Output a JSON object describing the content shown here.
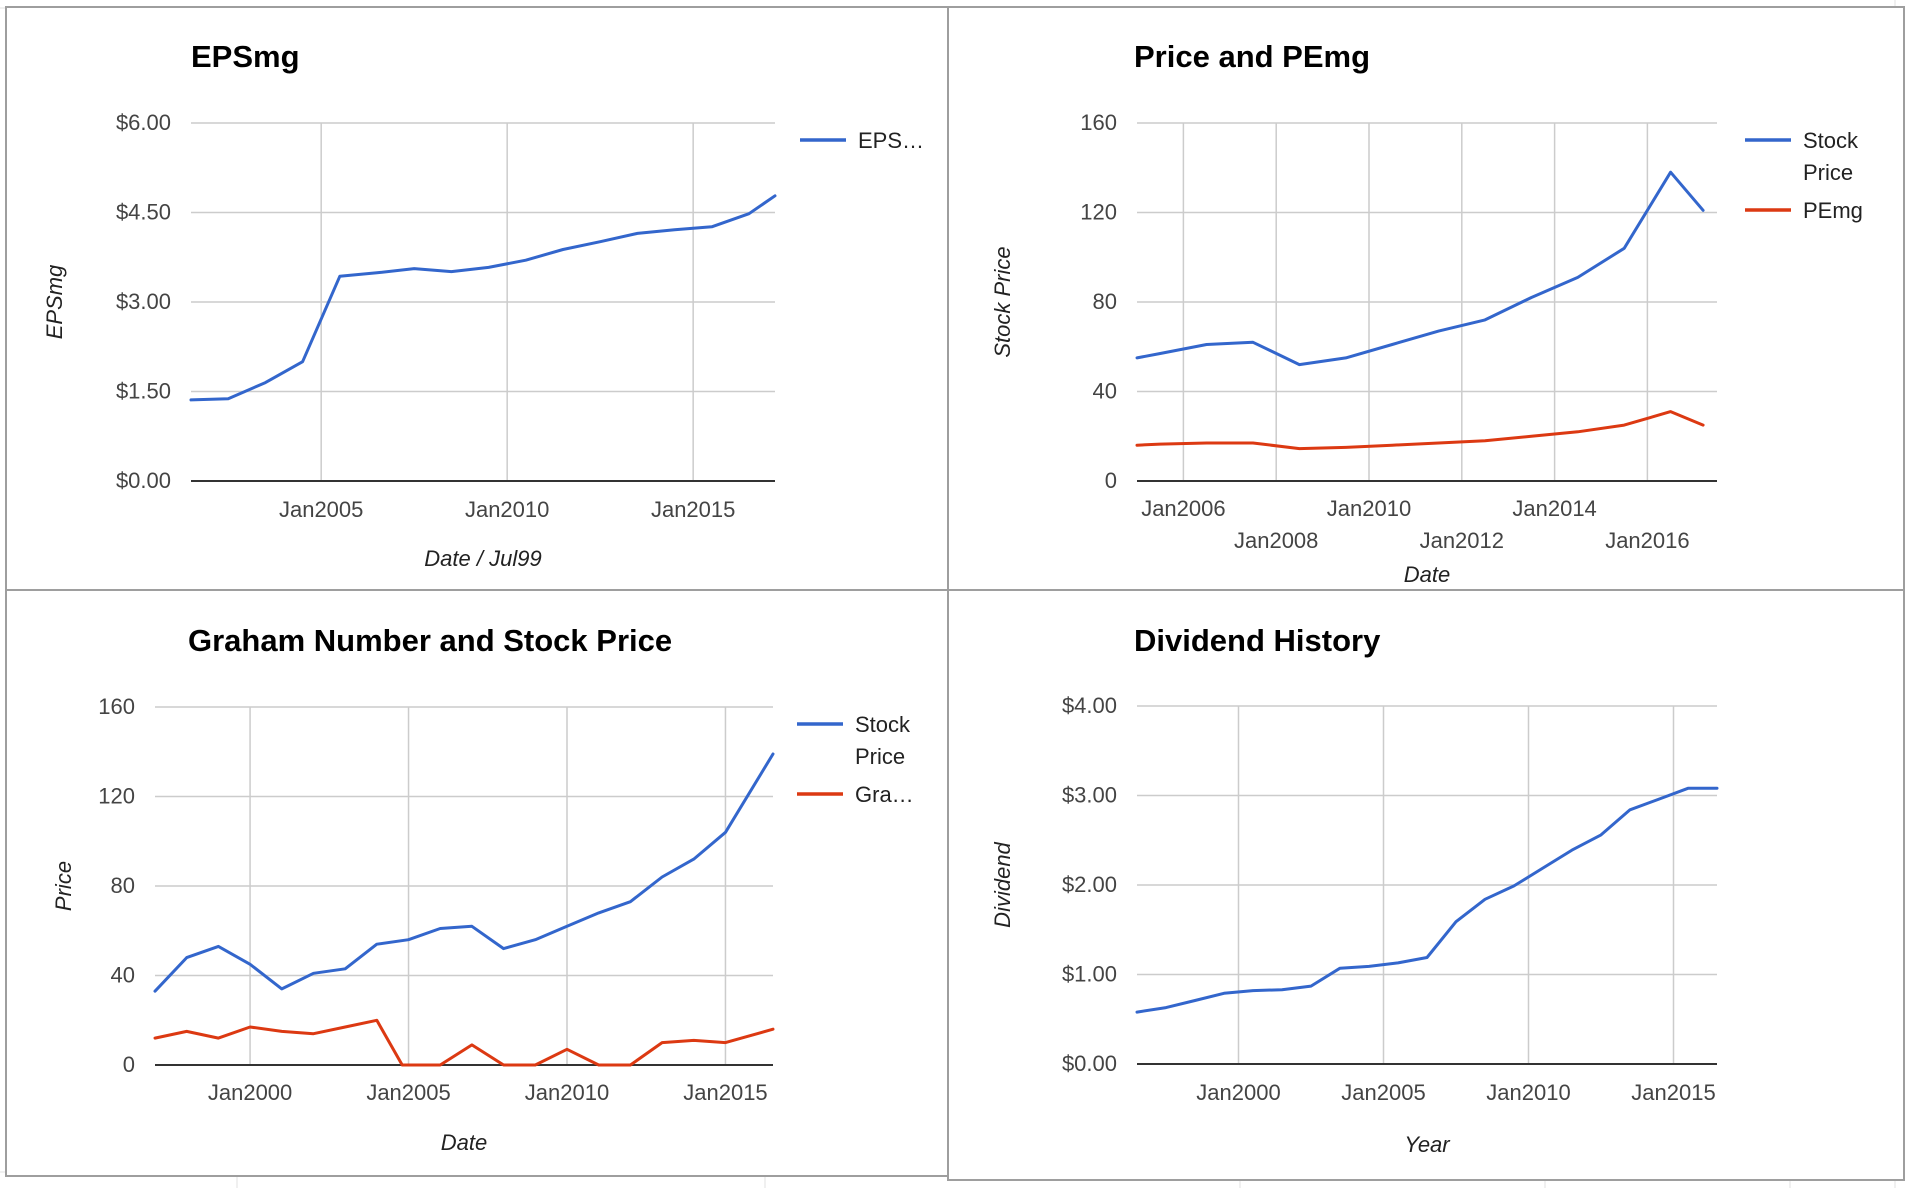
{
  "colors": {
    "blue": "#3366cc",
    "red": "#dc3912"
  },
  "chart_data": [
    {
      "type": "line",
      "title": "EPSmg",
      "xlabel": "Date / Jul99",
      "ylabel": "EPSmg",
      "ylim": [
        0,
        6
      ],
      "y_ticks": [
        0,
        1.5,
        3,
        4.5,
        6
      ],
      "y_tick_labels": [
        "$0.00",
        "$1.50",
        "$3.00",
        "$4.50",
        "$6.00"
      ],
      "x_range": [
        2001.5,
        2017.2
      ],
      "x_ticks": [
        2005,
        2010,
        2015
      ],
      "x_tick_labels": [
        "Jan2005",
        "Jan2010",
        "Jan2015"
      ],
      "grid": true,
      "legend": "right",
      "series": [
        {
          "name": "EPS…",
          "color": "#3366cc",
          "x": [
            2001.5,
            2002.5,
            2003.5,
            2004.5,
            2005.5,
            2006.5,
            2007.5,
            2008.5,
            2009.5,
            2010.5,
            2011.5,
            2012.5,
            2013.5,
            2014.5,
            2015.5,
            2016.5,
            2017.2
          ],
          "values": [
            1.36,
            1.38,
            1.65,
            2.0,
            3.43,
            3.49,
            3.56,
            3.51,
            3.58,
            3.7,
            3.88,
            4.01,
            4.15,
            4.21,
            4.26,
            4.48,
            4.78
          ]
        }
      ]
    },
    {
      "type": "line",
      "title": "Price and PEmg",
      "xlabel": "Date",
      "ylabel": "Stock Price",
      "ylim": [
        0,
        160
      ],
      "y_ticks": [
        0,
        40,
        80,
        120,
        160
      ],
      "y_tick_labels": [
        "0",
        "40",
        "80",
        "120",
        "160"
      ],
      "x_range": [
        2005.0,
        2017.5
      ],
      "x_ticks": [
        2006,
        2008,
        2010,
        2012,
        2014,
        2016
      ],
      "x_tick_labels": [
        "Jan2006",
        "Jan2008",
        "Jan2010",
        "Jan2012",
        "Jan2014",
        "Jan2016"
      ],
      "grid": true,
      "legend": "right",
      "series": [
        {
          "name": "Stock Price",
          "color": "#3366cc",
          "x": [
            2005.0,
            2005.5,
            2006.5,
            2007.5,
            2008.5,
            2009.5,
            2010.5,
            2011.5,
            2012.5,
            2013.5,
            2014.5,
            2015.5,
            2016.5,
            2017.2
          ],
          "values": [
            55,
            57,
            61,
            62,
            52,
            55,
            61,
            67,
            72,
            82,
            91,
            104,
            138,
            121
          ]
        },
        {
          "name": "PEmg",
          "color": "#dc3912",
          "x": [
            2005.0,
            2005.5,
            2006.5,
            2007.5,
            2008.5,
            2009.5,
            2010.5,
            2011.5,
            2012.5,
            2013.5,
            2014.5,
            2015.5,
            2016.5,
            2017.2
          ],
          "values": [
            16,
            16.5,
            17,
            17,
            14.5,
            15,
            16,
            17,
            18,
            20,
            22,
            25,
            31,
            25
          ]
        }
      ]
    },
    {
      "type": "line",
      "title": "Graham Number and Stock Price",
      "xlabel": "Date",
      "ylabel": "Price",
      "ylim": [
        0,
        160
      ],
      "y_ticks": [
        0,
        40,
        80,
        120,
        160
      ],
      "y_tick_labels": [
        "0",
        "40",
        "80",
        "120",
        "160"
      ],
      "x_range": [
        1997.0,
        2016.5
      ],
      "x_ticks": [
        2000,
        2005,
        2010,
        2015
      ],
      "x_tick_labels": [
        "Jan2000",
        "Jan2005",
        "Jan2010",
        "Jan2015"
      ],
      "grid": true,
      "legend": "right",
      "series": [
        {
          "name": "Stock Price",
          "color": "#3366cc",
          "x": [
            1997.0,
            1998.0,
            1999.0,
            2000.0,
            2001.0,
            2002.0,
            2003.0,
            2004.0,
            2005.0,
            2006.0,
            2007.0,
            2008.0,
            2009.0,
            2010.0,
            2011.0,
            2012.0,
            2013.0,
            2014.0,
            2015.0,
            2016.5
          ],
          "values": [
            33,
            48,
            53,
            45,
            34,
            41,
            43,
            54,
            56,
            61,
            62,
            52,
            56,
            62,
            68,
            73,
            84,
            92,
            104,
            139
          ]
        },
        {
          "name": "Gra…",
          "color": "#dc3912",
          "x": [
            1997.0,
            1998.0,
            1999.0,
            2000.0,
            2001.0,
            2002.0,
            2003.0,
            2004.0,
            2004.8,
            2006.0,
            2007.0,
            2008.0,
            2009.0,
            2010.0,
            2011.0,
            2012.0,
            2013.0,
            2014.0,
            2015.0,
            2016.5
          ],
          "values": [
            12,
            15,
            12,
            17,
            15,
            14,
            17,
            20,
            0,
            0,
            9,
            0,
            0,
            7,
            0,
            0,
            10,
            11,
            10,
            16
          ]
        }
      ]
    },
    {
      "type": "line",
      "title": "Dividend History",
      "xlabel": "Year",
      "ylabel": "Dividend",
      "ylim": [
        0,
        4
      ],
      "y_ticks": [
        0,
        1,
        2,
        3,
        4
      ],
      "y_tick_labels": [
        "$0.00",
        "$1.00",
        "$2.00",
        "$3.00",
        "$4.00"
      ],
      "x_range": [
        1996.5,
        2016.5
      ],
      "x_ticks": [
        2000,
        2005,
        2010,
        2015
      ],
      "x_tick_labels": [
        "Jan2000",
        "Jan2005",
        "Jan2010",
        "Jan2015"
      ],
      "grid": true,
      "legend": "none",
      "series": [
        {
          "color": "#3366cc",
          "x": [
            1996.5,
            1997.5,
            1998.5,
            1999.5,
            2000.5,
            2001.5,
            2002.5,
            2003.5,
            2004.5,
            2005.5,
            2006.5,
            2007.5,
            2008.5,
            2009.5,
            2010.5,
            2011.5,
            2012.5,
            2013.5,
            2014.5,
            2015.5,
            2016.5
          ],
          "values": [
            0.58,
            0.63,
            0.71,
            0.79,
            0.82,
            0.83,
            0.87,
            1.07,
            1.09,
            1.13,
            1.19,
            1.59,
            1.84,
            1.99,
            2.19,
            2.39,
            2.56,
            2.84,
            2.96,
            3.08,
            3.08
          ]
        }
      ]
    }
  ]
}
